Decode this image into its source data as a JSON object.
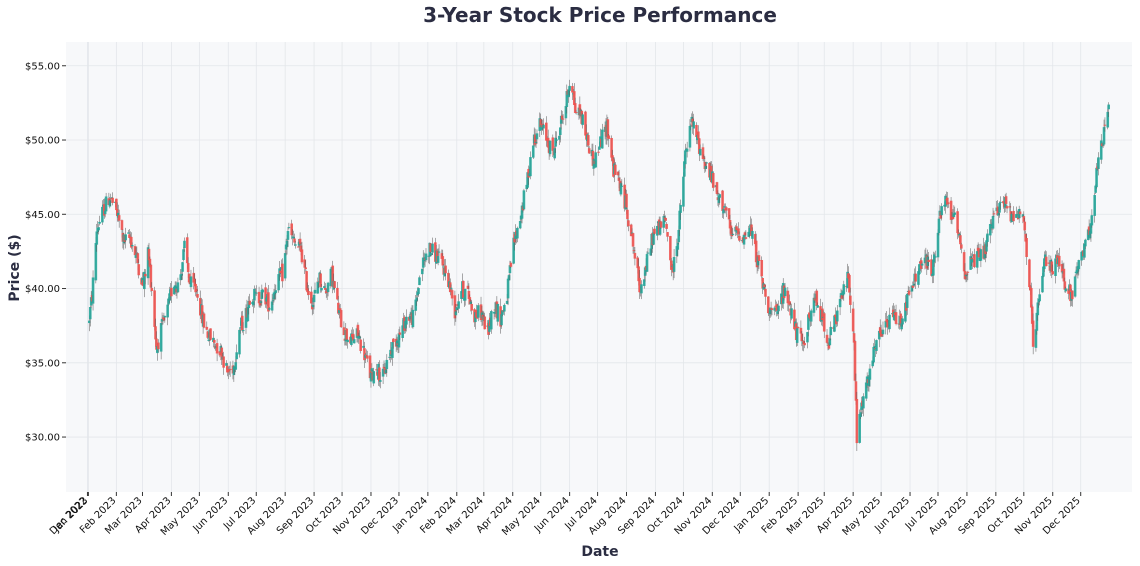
{
  "chart_data": {
    "type": "candlestick",
    "title": "3-Year Stock Price Performance",
    "xlabel": "Date",
    "ylabel": "Price ($)",
    "ylim": [
      26.3,
      56.6
    ],
    "xlim": [
      "2022-12-08",
      "2026-01-24"
    ],
    "grid": true,
    "up_color": "#26a69a",
    "down_color": "#ef5350",
    "plot_bg": "#f7f8fa",
    "y_ticks": [
      "$30.00",
      "$35.00",
      "$40.00",
      "$45.00",
      "$50.00",
      "$55.00"
    ],
    "y_tick_values": [
      30,
      35,
      40,
      45,
      50,
      55
    ],
    "x_ticks": [
      {
        "date": "2022-12-31",
        "label": "Dec 2022"
      },
      {
        "date": "2023-01-01",
        "label": "Jan 2023"
      },
      {
        "date": "2023-01-31",
        "label": "Feb 2023"
      },
      {
        "date": "2023-02-28",
        "label": "Mar 2023"
      },
      {
        "date": "2023-03-31",
        "label": "Apr 2023"
      },
      {
        "date": "2023-04-30",
        "label": "May 2023"
      },
      {
        "date": "2023-05-31",
        "label": "Jun 2023"
      },
      {
        "date": "2023-06-30",
        "label": "Jul 2023"
      },
      {
        "date": "2023-07-31",
        "label": "Aug 2023"
      },
      {
        "date": "2023-08-31",
        "label": "Sep 2023"
      },
      {
        "date": "2023-09-30",
        "label": "Oct 2023"
      },
      {
        "date": "2023-10-31",
        "label": "Nov 2023"
      },
      {
        "date": "2023-11-30",
        "label": "Dec 2023"
      },
      {
        "date": "2023-12-31",
        "label": "Jan 2024"
      },
      {
        "date": "2024-01-31",
        "label": "Feb 2024"
      },
      {
        "date": "2024-02-29",
        "label": "Mar 2024"
      },
      {
        "date": "2024-03-31",
        "label": "Apr 2024"
      },
      {
        "date": "2024-04-30",
        "label": "May 2024"
      },
      {
        "date": "2024-05-31",
        "label": "Jun 2024"
      },
      {
        "date": "2024-06-30",
        "label": "Jul 2024"
      },
      {
        "date": "2024-07-31",
        "label": "Aug 2024"
      },
      {
        "date": "2024-08-31",
        "label": "Sep 2024"
      },
      {
        "date": "2024-09-30",
        "label": "Oct 2024"
      },
      {
        "date": "2024-10-31",
        "label": "Nov 2024"
      },
      {
        "date": "2024-11-30",
        "label": "Dec 2024"
      },
      {
        "date": "2024-12-31",
        "label": "Jan 2025"
      },
      {
        "date": "2025-01-31",
        "label": "Feb 2025"
      },
      {
        "date": "2025-02-28",
        "label": "Mar 2025"
      },
      {
        "date": "2025-03-31",
        "label": "Apr 2025"
      },
      {
        "date": "2025-04-30",
        "label": "May 2025"
      },
      {
        "date": "2025-05-31",
        "label": "Jun 2025"
      },
      {
        "date": "2025-06-30",
        "label": "Jul 2025"
      },
      {
        "date": "2025-07-31",
        "label": "Aug 2025"
      },
      {
        "date": "2025-08-31",
        "label": "Sep 2025"
      },
      {
        "date": "2025-09-30",
        "label": "Oct 2025"
      },
      {
        "date": "2025-10-31",
        "label": "Nov 2025"
      },
      {
        "date": "2025-11-30",
        "label": "Dec 2025"
      }
    ],
    "series": [
      {
        "values": [
          [
            "2023-01-01",
            37.6
          ],
          [
            "2023-01-05",
            39.5
          ],
          [
            "2023-01-10",
            44.0
          ],
          [
            "2023-01-18",
            45.4
          ],
          [
            "2023-01-24",
            46.2
          ],
          [
            "2023-02-01",
            45.0
          ],
          [
            "2023-02-08",
            43.2
          ],
          [
            "2023-02-15",
            43.4
          ],
          [
            "2023-02-22",
            42.0
          ],
          [
            "2023-03-01",
            40.2
          ],
          [
            "2023-03-06",
            42.5
          ],
          [
            "2023-03-10",
            40.0
          ],
          [
            "2023-03-15",
            36.0
          ],
          [
            "2023-03-20",
            37.2
          ],
          [
            "2023-03-26",
            38.2
          ],
          [
            "2023-04-02",
            40.5
          ],
          [
            "2023-04-08",
            40.2
          ],
          [
            "2023-04-14",
            42.7
          ],
          [
            "2023-04-20",
            40.3
          ],
          [
            "2023-04-28",
            39.8
          ],
          [
            "2023-05-03",
            38.0
          ],
          [
            "2023-05-10",
            36.8
          ],
          [
            "2023-05-17",
            36.3
          ],
          [
            "2023-05-24",
            35.7
          ],
          [
            "2023-05-30",
            34.3
          ],
          [
            "2023-06-06",
            34.8
          ],
          [
            "2023-06-12",
            37.3
          ],
          [
            "2023-06-18",
            38.0
          ],
          [
            "2023-06-24",
            39.8
          ],
          [
            "2023-07-01",
            39.3
          ],
          [
            "2023-07-08",
            39.6
          ],
          [
            "2023-07-15",
            38.8
          ],
          [
            "2023-07-22",
            40.6
          ],
          [
            "2023-07-29",
            41.0
          ],
          [
            "2023-08-03",
            44.0
          ],
          [
            "2023-08-10",
            43.0
          ],
          [
            "2023-08-17",
            42.6
          ],
          [
            "2023-08-24",
            40.0
          ],
          [
            "2023-08-30",
            39.0
          ],
          [
            "2023-09-05",
            40.8
          ],
          [
            "2023-09-12",
            39.8
          ],
          [
            "2023-09-19",
            41.0
          ],
          [
            "2023-09-26",
            38.5
          ],
          [
            "2023-10-03",
            37.0
          ],
          [
            "2023-10-10",
            36.5
          ],
          [
            "2023-10-17",
            36.9
          ],
          [
            "2023-10-24",
            35.6
          ],
          [
            "2023-10-31",
            34.0
          ],
          [
            "2023-11-06",
            34.8
          ],
          [
            "2023-11-12",
            33.8
          ],
          [
            "2023-11-18",
            35.3
          ],
          [
            "2023-11-25",
            36.4
          ],
          [
            "2023-12-02",
            37.0
          ],
          [
            "2023-12-09",
            38.2
          ],
          [
            "2023-12-16",
            38.0
          ],
          [
            "2023-12-23",
            41.2
          ],
          [
            "2024-01-01",
            42.7
          ],
          [
            "2024-01-08",
            42.3
          ],
          [
            "2024-01-15",
            41.7
          ],
          [
            "2024-01-22",
            40.6
          ],
          [
            "2024-01-29",
            38.5
          ],
          [
            "2024-02-05",
            40.0
          ],
          [
            "2024-02-12",
            39.6
          ],
          [
            "2024-02-19",
            38.2
          ],
          [
            "2024-02-26",
            38.4
          ],
          [
            "2024-03-04",
            37.0
          ],
          [
            "2024-03-11",
            39.0
          ],
          [
            "2024-03-18",
            38.0
          ],
          [
            "2024-03-25",
            39.6
          ],
          [
            "2024-04-01",
            43.0
          ],
          [
            "2024-04-08",
            44.8
          ],
          [
            "2024-04-15",
            47.0
          ],
          [
            "2024-04-22",
            50.0
          ],
          [
            "2024-04-29",
            51.0
          ],
          [
            "2024-05-06",
            50.2
          ],
          [
            "2024-05-13",
            49.0
          ],
          [
            "2024-05-20",
            50.8
          ],
          [
            "2024-05-27",
            52.4
          ],
          [
            "2024-06-01",
            54.5
          ],
          [
            "2024-06-06",
            52.0
          ],
          [
            "2024-06-12",
            51.8
          ],
          [
            "2024-06-19",
            50.0
          ],
          [
            "2024-06-26",
            48.5
          ],
          [
            "2024-07-03",
            49.8
          ],
          [
            "2024-07-10",
            51.0
          ],
          [
            "2024-07-17",
            48.0
          ],
          [
            "2024-07-24",
            47.0
          ],
          [
            "2024-07-31",
            45.5
          ],
          [
            "2024-08-07",
            43.0
          ],
          [
            "2024-08-14",
            40.0
          ],
          [
            "2024-08-21",
            41.5
          ],
          [
            "2024-08-28",
            43.5
          ],
          [
            "2024-09-04",
            44.2
          ],
          [
            "2024-09-11",
            44.5
          ],
          [
            "2024-09-18",
            41.0
          ],
          [
            "2024-09-25",
            44.0
          ],
          [
            "2024-10-02",
            49.0
          ],
          [
            "2024-10-09",
            51.2
          ],
          [
            "2024-10-16",
            49.8
          ],
          [
            "2024-10-23",
            48.5
          ],
          [
            "2024-10-30",
            47.5
          ],
          [
            "2024-11-06",
            46.0
          ],
          [
            "2024-11-13",
            45.6
          ],
          [
            "2024-11-20",
            43.5
          ],
          [
            "2024-11-27",
            43.8
          ],
          [
            "2024-12-04",
            43.5
          ],
          [
            "2024-12-11",
            44.0
          ],
          [
            "2024-12-18",
            42.0
          ],
          [
            "2024-12-25",
            40.0
          ],
          [
            "2025-01-01",
            38.5
          ],
          [
            "2025-01-08",
            38.2
          ],
          [
            "2025-01-15",
            39.8
          ],
          [
            "2025-01-22",
            39.0
          ],
          [
            "2025-01-29",
            37.0
          ],
          [
            "2025-02-05",
            36.2
          ],
          [
            "2025-02-12",
            38.0
          ],
          [
            "2025-02-19",
            39.2
          ],
          [
            "2025-02-26",
            38.0
          ],
          [
            "2025-03-05",
            36.5
          ],
          [
            "2025-03-12",
            37.8
          ],
          [
            "2025-03-19",
            39.5
          ],
          [
            "2025-03-26",
            41.0
          ],
          [
            "2025-04-01",
            36.0
          ],
          [
            "2025-04-04",
            30.0
          ],
          [
            "2025-04-09",
            32.0
          ],
          [
            "2025-04-15",
            33.5
          ],
          [
            "2025-04-22",
            35.5
          ],
          [
            "2025-04-29",
            37.0
          ],
          [
            "2025-05-06",
            37.5
          ],
          [
            "2025-05-13",
            38.2
          ],
          [
            "2025-05-20",
            37.8
          ],
          [
            "2025-05-27",
            39.0
          ],
          [
            "2025-06-03",
            40.2
          ],
          [
            "2025-06-10",
            41.5
          ],
          [
            "2025-06-17",
            41.8
          ],
          [
            "2025-06-24",
            41.2
          ],
          [
            "2025-07-01",
            44.5
          ],
          [
            "2025-07-08",
            45.8
          ],
          [
            "2025-07-15",
            45.0
          ],
          [
            "2025-07-22",
            44.0
          ],
          [
            "2025-07-29",
            41.0
          ],
          [
            "2025-08-05",
            41.8
          ],
          [
            "2025-08-12",
            42.0
          ],
          [
            "2025-08-19",
            42.5
          ],
          [
            "2025-08-26",
            44.0
          ],
          [
            "2025-09-02",
            45.5
          ],
          [
            "2025-09-09",
            45.8
          ],
          [
            "2025-09-16",
            45.0
          ],
          [
            "2025-09-23",
            45.3
          ],
          [
            "2025-09-30",
            44.6
          ],
          [
            "2025-10-07",
            39.5
          ],
          [
            "2025-10-10",
            35.8
          ],
          [
            "2025-10-16",
            39.0
          ],
          [
            "2025-10-23",
            42.0
          ],
          [
            "2025-10-30",
            41.5
          ],
          [
            "2025-11-06",
            41.8
          ],
          [
            "2025-11-13",
            40.5
          ],
          [
            "2025-11-20",
            39.5
          ],
          [
            "2025-11-27",
            41.2
          ],
          [
            "2025-12-04",
            42.5
          ],
          [
            "2025-12-11",
            44.8
          ],
          [
            "2025-12-18",
            48.0
          ],
          [
            "2025-12-25",
            50.5
          ],
          [
            "2025-12-31",
            52.2
          ]
        ]
      }
    ]
  }
}
